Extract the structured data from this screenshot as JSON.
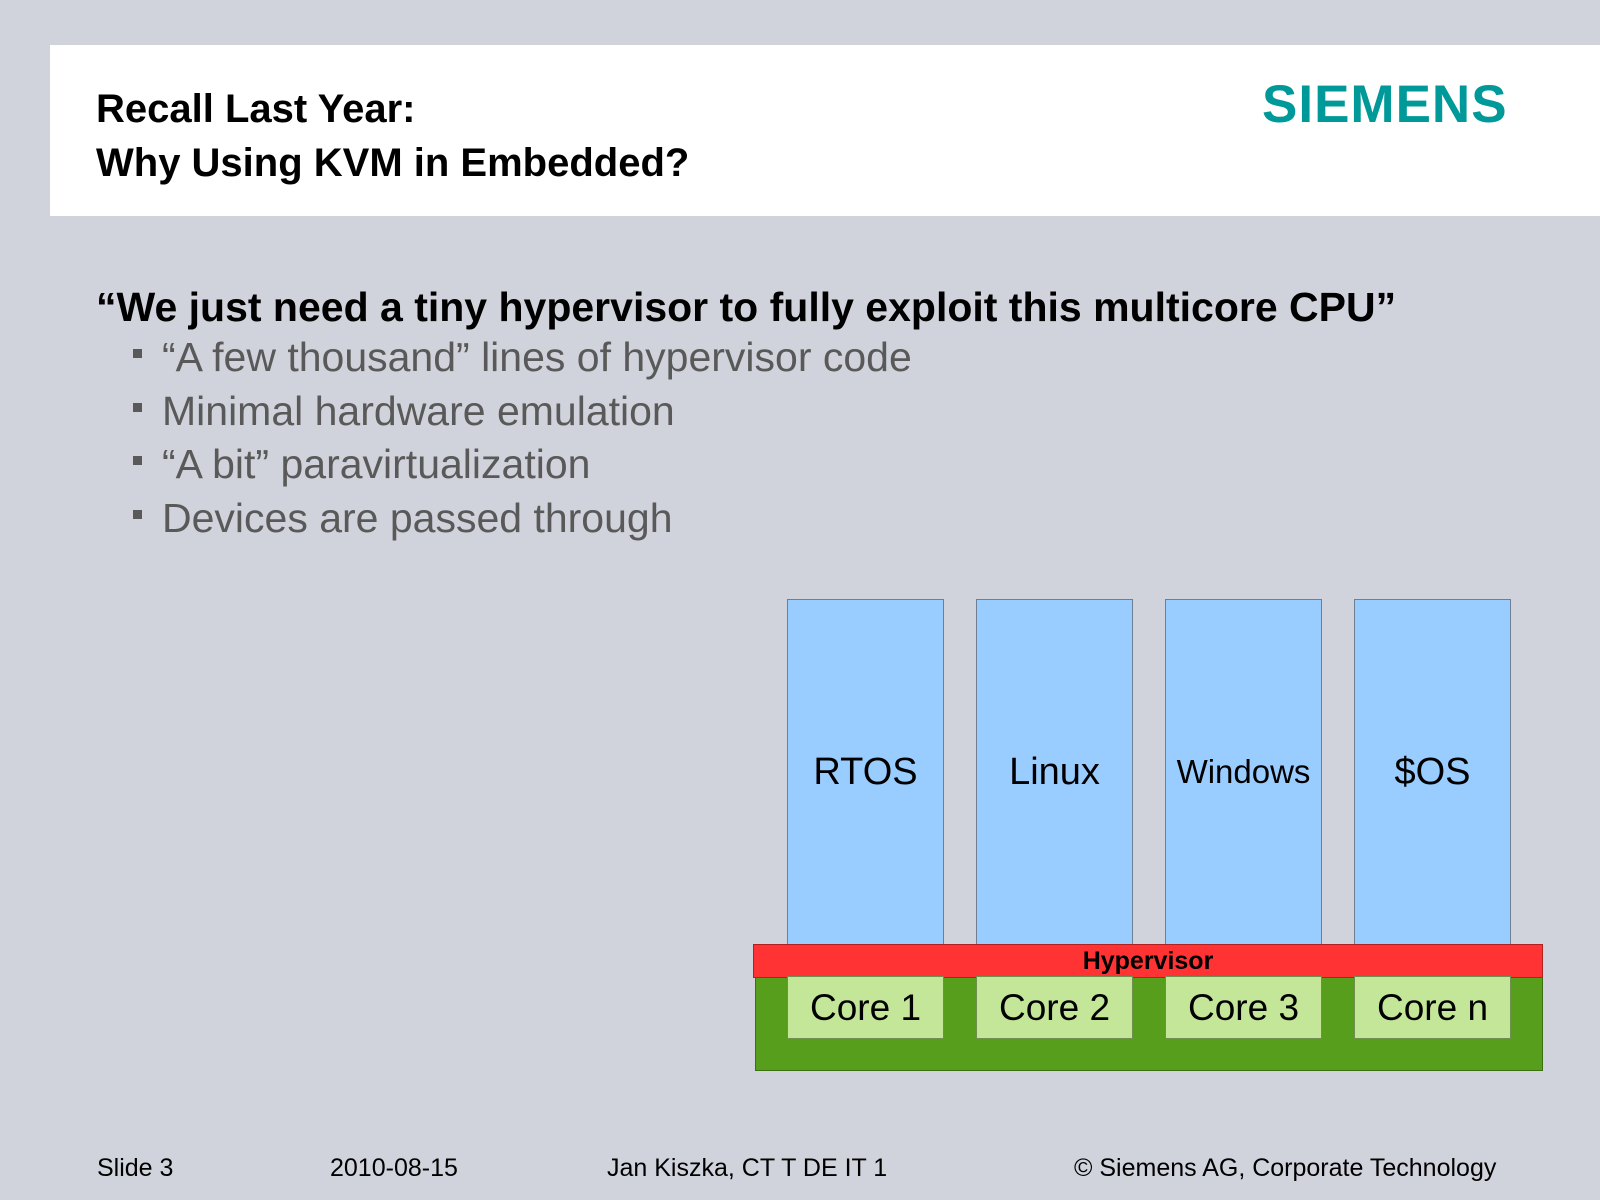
{
  "header": {
    "title_line1": "Recall Last Year:",
    "title_line2": "Why Using KVM in Embedded?",
    "logo": "SIEMENS",
    "logo_color": "#009999"
  },
  "body": {
    "quote": "“We just need a tiny hypervisor to fully exploit this multicore CPU”",
    "bullets": [
      "“A few thousand” lines of hypervisor code",
      "Minimal hardware emulation",
      "“A bit” paravirtualization",
      "Devices are passed through"
    ]
  },
  "diagram": {
    "guests": [
      "RTOS",
      "Linux",
      "Windows",
      "$OS"
    ],
    "hypervisor": "Hypervisor",
    "cores": [
      "Core 1",
      "Core 2",
      "Core 3",
      "Core n"
    ],
    "colors": {
      "guest": "#99ccff",
      "hypervisor": "#ff3333",
      "board": "#579e1c",
      "core": "#c3e699"
    }
  },
  "footer": {
    "slide": "Slide 3",
    "date": "2010-08-15",
    "author": "Jan Kiszka, CT T DE IT 1",
    "copyright": "© Siemens AG, Corporate Technology"
  }
}
